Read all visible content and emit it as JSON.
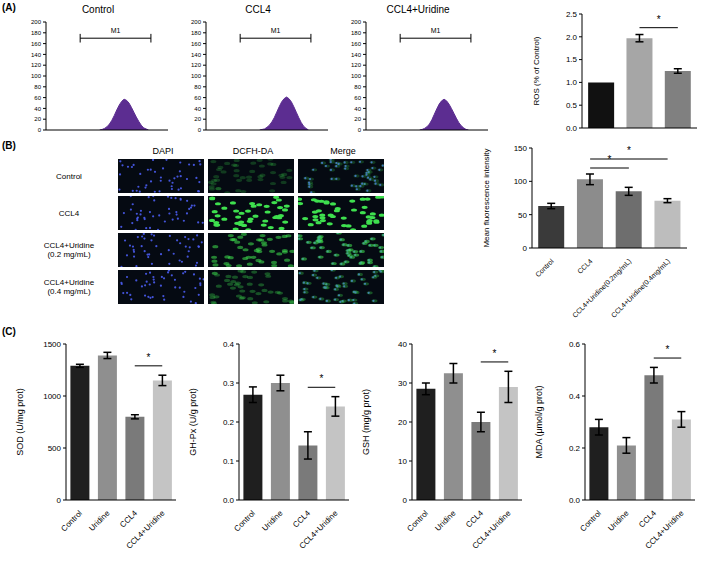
{
  "panel_labels": [
    "(A)",
    "(B)",
    "(C)"
  ],
  "images": {
    "columns": [
      "DAPI",
      "DCFH-DA",
      "Merge"
    ],
    "rows": [
      "Control",
      "CCL4",
      "CCL4+Uridine\n(0.2 mg/mL)",
      "CCL4+Uridine\n(0.4 mg/mL)"
    ]
  },
  "chart_data": [
    {
      "type": "area",
      "title": "Control",
      "x": [
        44,
        46,
        48,
        50,
        52,
        54,
        56,
        58,
        60,
        62,
        64,
        66,
        68,
        70,
        72,
        74,
        76,
        78,
        80,
        82,
        84
      ],
      "values": [
        0,
        1,
        3,
        6,
        11,
        18,
        27,
        37,
        46,
        53,
        57,
        55,
        50,
        42,
        33,
        24,
        16,
        9,
        4,
        2,
        0
      ],
      "color": "#5c2d91",
      "xlim": [
        0,
        100
      ],
      "ylim": [
        0,
        200
      ],
      "yticks": [
        0,
        20,
        40,
        60,
        80,
        100,
        120,
        140,
        160,
        180,
        200
      ],
      "tick_labels": "y",
      "annotations": [
        {
          "text": "M1",
          "x": [
            28,
            86
          ],
          "y": 170
        }
      ]
    },
    {
      "type": "area",
      "title": "CCL4",
      "x": [
        44,
        46,
        48,
        50,
        52,
        54,
        56,
        58,
        60,
        62,
        64,
        66,
        68,
        70,
        72,
        74,
        76,
        78,
        80,
        82,
        84
      ],
      "values": [
        0,
        1,
        2,
        5,
        9,
        15,
        23,
        33,
        43,
        52,
        58,
        61,
        58,
        52,
        43,
        33,
        23,
        14,
        7,
        3,
        0
      ],
      "color": "#5c2d91",
      "xlim": [
        0,
        100
      ],
      "ylim": [
        0,
        200
      ],
      "yticks": [
        0,
        20,
        40,
        60,
        80,
        100,
        120,
        140,
        160,
        180,
        200
      ],
      "tick_labels": "y",
      "annotations": [
        {
          "text": "M1",
          "x": [
            28,
            86
          ],
          "y": 170
        }
      ]
    },
    {
      "type": "area",
      "title": "CCL4+Uridine",
      "x": [
        44,
        46,
        48,
        50,
        52,
        54,
        56,
        58,
        60,
        62,
        64,
        66,
        68,
        70,
        72,
        74,
        76,
        78,
        80,
        82,
        84
      ],
      "values": [
        0,
        1,
        3,
        6,
        11,
        19,
        29,
        39,
        48,
        54,
        57,
        54,
        48,
        40,
        31,
        22,
        14,
        8,
        4,
        1,
        0
      ],
      "color": "#5c2d91",
      "xlim": [
        0,
        100
      ],
      "ylim": [
        0,
        200
      ],
      "yticks": [
        0,
        20,
        40,
        60,
        80,
        100,
        120,
        140,
        160,
        180,
        200
      ],
      "tick_labels": "y",
      "annotations": [
        {
          "text": "M1",
          "x": [
            28,
            86
          ],
          "y": 170
        }
      ]
    },
    {
      "type": "bar",
      "ylabel": "ROS (% of Control)",
      "categories": [
        null,
        null,
        null
      ],
      "values": [
        1.0,
        1.97,
        1.25
      ],
      "errors": [
        0,
        0.08,
        0.05
      ],
      "colors": [
        "#111111",
        "#a6a6a6",
        "#808080"
      ],
      "ylim": [
        0,
        2.5
      ],
      "yticks": [
        {
          "value": 0,
          "label": "0.0"
        },
        0.5,
        {
          "value": 1,
          "label": "1.0"
        },
        1.5,
        {
          "value": 2,
          "label": "2.0"
        },
        2.5
      ],
      "significance": [
        {
          "between": [
            1,
            2
          ],
          "label": "*"
        }
      ]
    },
    {
      "type": "bar",
      "ylabel": "Mean fluorescence intensity",
      "categories": [
        "Control",
        "CCL4",
        "CCL4+Uridine(0.2mg/mL)",
        "CCL4+Uridine(0.4mg/mL)"
      ],
      "values": [
        63,
        103,
        85,
        71
      ],
      "errors": [
        4,
        8,
        6,
        3
      ],
      "colors": [
        "#3a3a3a",
        "#8c8c8c",
        "#6e6e6e",
        "#bdbdbd"
      ],
      "ylim": [
        0,
        150
      ],
      "yticks": [
        0,
        50,
        100,
        150
      ],
      "significance": [
        {
          "between": [
            1,
            2
          ],
          "label": "*"
        },
        {
          "between": [
            1,
            3
          ],
          "label": "*"
        }
      ]
    },
    {
      "type": "bar",
      "ylabel": "SOD (U/mg prot)",
      "categories": [
        "Control",
        "Uridine",
        "CCL4",
        "CCL4+Uridine"
      ],
      "values": [
        1290,
        1390,
        800,
        1150
      ],
      "errors": [
        15,
        30,
        20,
        50
      ],
      "colors": [
        "#1f1f1f",
        "#8f8f8f",
        "#7a7a7a",
        "#c4c4c4"
      ],
      "ylim": [
        0,
        1500
      ],
      "yticks": [
        0,
        500,
        1000,
        1500
      ],
      "significance": [
        {
          "between": [
            2,
            3
          ],
          "label": "*"
        }
      ]
    },
    {
      "type": "bar",
      "ylabel": "GH-Px (U/g prot)",
      "categories": [
        "Control",
        "Uridine",
        "CCL4",
        "CCL4+Uridine"
      ],
      "values": [
        0.27,
        0.3,
        0.14,
        0.24
      ],
      "errors": [
        0.02,
        0.02,
        0.035,
        0.025
      ],
      "colors": [
        "#1f1f1f",
        "#8f8f8f",
        "#7a7a7a",
        "#c4c4c4"
      ],
      "ylim": [
        0,
        0.4
      ],
      "yticks": [
        {
          "value": 0,
          "label": "0.0"
        },
        0.1,
        0.2,
        0.3,
        0.4
      ],
      "significance": [
        {
          "between": [
            2,
            3
          ],
          "label": "*"
        }
      ]
    },
    {
      "type": "bar",
      "ylabel": "GSH (mg/g prot)",
      "categories": [
        "Control",
        "Uridine",
        "CCL4",
        "CCL4+Uridine"
      ],
      "values": [
        28.5,
        32.5,
        20,
        29
      ],
      "errors": [
        1.5,
        2.5,
        2.5,
        4
      ],
      "colors": [
        "#1f1f1f",
        "#8f8f8f",
        "#7a7a7a",
        "#c4c4c4"
      ],
      "ylim": [
        0,
        40
      ],
      "yticks": [
        0,
        10,
        20,
        30,
        40
      ],
      "significance": [
        {
          "between": [
            2,
            3
          ],
          "label": "*"
        }
      ]
    },
    {
      "type": "bar",
      "ylabel": "MDA (μmol/g prot)",
      "categories": [
        "Control",
        "Uridine",
        "CCL4",
        "CCL4+Uridine"
      ],
      "values": [
        0.28,
        0.21,
        0.48,
        0.31
      ],
      "errors": [
        0.03,
        0.03,
        0.03,
        0.03
      ],
      "colors": [
        "#1f1f1f",
        "#8f8f8f",
        "#7a7a7a",
        "#c4c4c4"
      ],
      "ylim": [
        0,
        0.6
      ],
      "yticks": [
        {
          "value": 0,
          "label": "0.0"
        },
        0.2,
        0.4,
        0.6
      ],
      "significance": [
        {
          "between": [
            2,
            3
          ],
          "label": "*"
        }
      ]
    }
  ]
}
